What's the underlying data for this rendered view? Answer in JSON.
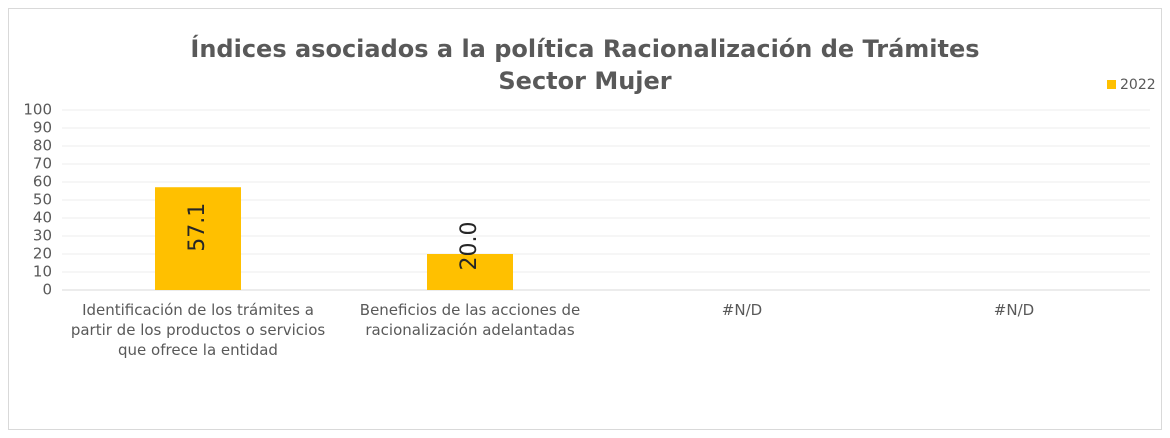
{
  "chart_data": {
    "type": "bar",
    "title": "Índices asociados a la política Racionalización de Trámites",
    "subtitle": "Sector Mujer",
    "categories": [
      "Identificación de los trámites a partir de los productos o servicios que ofrece la entidad",
      "Beneficios de las acciones de racionalización adelantadas",
      "#N/D",
      "#N/D"
    ],
    "series": [
      {
        "name": "2022",
        "color": "#ffc000",
        "values": [
          57.1,
          20.0,
          null,
          null
        ],
        "value_labels": [
          "57.1",
          "20.0",
          null,
          null
        ]
      }
    ],
    "ylim": [
      0,
      100
    ],
    "yticks": [
      0,
      10,
      20,
      30,
      40,
      50,
      60,
      70,
      80,
      90,
      100
    ],
    "grid": true,
    "legend": "top-right"
  }
}
